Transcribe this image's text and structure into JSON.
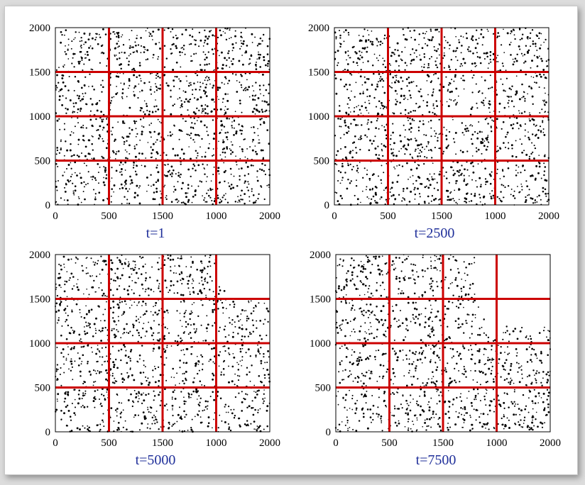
{
  "style": {
    "dot_color": "#000000",
    "grid_color": "#cc0000",
    "caption_color": "#1f2f9a"
  },
  "chart_data": [
    {
      "type": "scatter",
      "title": "t=1",
      "xlim": [
        0,
        2000
      ],
      "ylim": [
        0,
        2000
      ],
      "xticks": [
        "0",
        "500",
        "1500",
        "1000",
        "2000"
      ],
      "yticks": [
        "0",
        "500",
        "1000",
        "1500",
        "2000"
      ],
      "vertical_lines": [
        500,
        1000,
        1500
      ],
      "horizontal_lines": [
        500,
        1000,
        1500
      ],
      "empty_region": null
    },
    {
      "type": "scatter",
      "title": "t=2500",
      "xlim": [
        0,
        2000
      ],
      "ylim": [
        0,
        2000
      ],
      "xticks": [
        "0",
        "500",
        "1500",
        "1000",
        "2000"
      ],
      "yticks": [
        "0",
        "500",
        "1000",
        "1500",
        "2000"
      ],
      "vertical_lines": [
        500,
        1000,
        1500
      ],
      "horizontal_lines": [
        500,
        1000,
        1500
      ],
      "empty_region": {
        "corner": "top-right",
        "x0": 1850,
        "y0": 1950
      }
    },
    {
      "type": "scatter",
      "title": "t=5000",
      "xlim": [
        0,
        2000
      ],
      "ylim": [
        0,
        2000
      ],
      "xticks": [
        "0",
        "500",
        "1500",
        "1000",
        "2000"
      ],
      "yticks": [
        "0",
        "500",
        "1000",
        "1500",
        "2000"
      ],
      "vertical_lines": [
        500,
        1000,
        1500
      ],
      "horizontal_lines": [
        500,
        1000,
        1500
      ],
      "empty_region": {
        "corner": "top-right",
        "x0": 1500,
        "y0": 1500
      }
    },
    {
      "type": "scatter",
      "title": "t=7500",
      "xlim": [
        0,
        2000
      ],
      "ylim": [
        0,
        2000
      ],
      "xticks": [
        "0",
        "500",
        "1500",
        "1000",
        "2000"
      ],
      "yticks": [
        "0",
        "500",
        "1000",
        "1500",
        "2000"
      ],
      "vertical_lines": [
        500,
        1000,
        1500
      ],
      "horizontal_lines": [
        500,
        1000,
        1500
      ],
      "empty_region": {
        "corner": "top-right",
        "x0": 1300,
        "y0": 1200
      }
    }
  ]
}
